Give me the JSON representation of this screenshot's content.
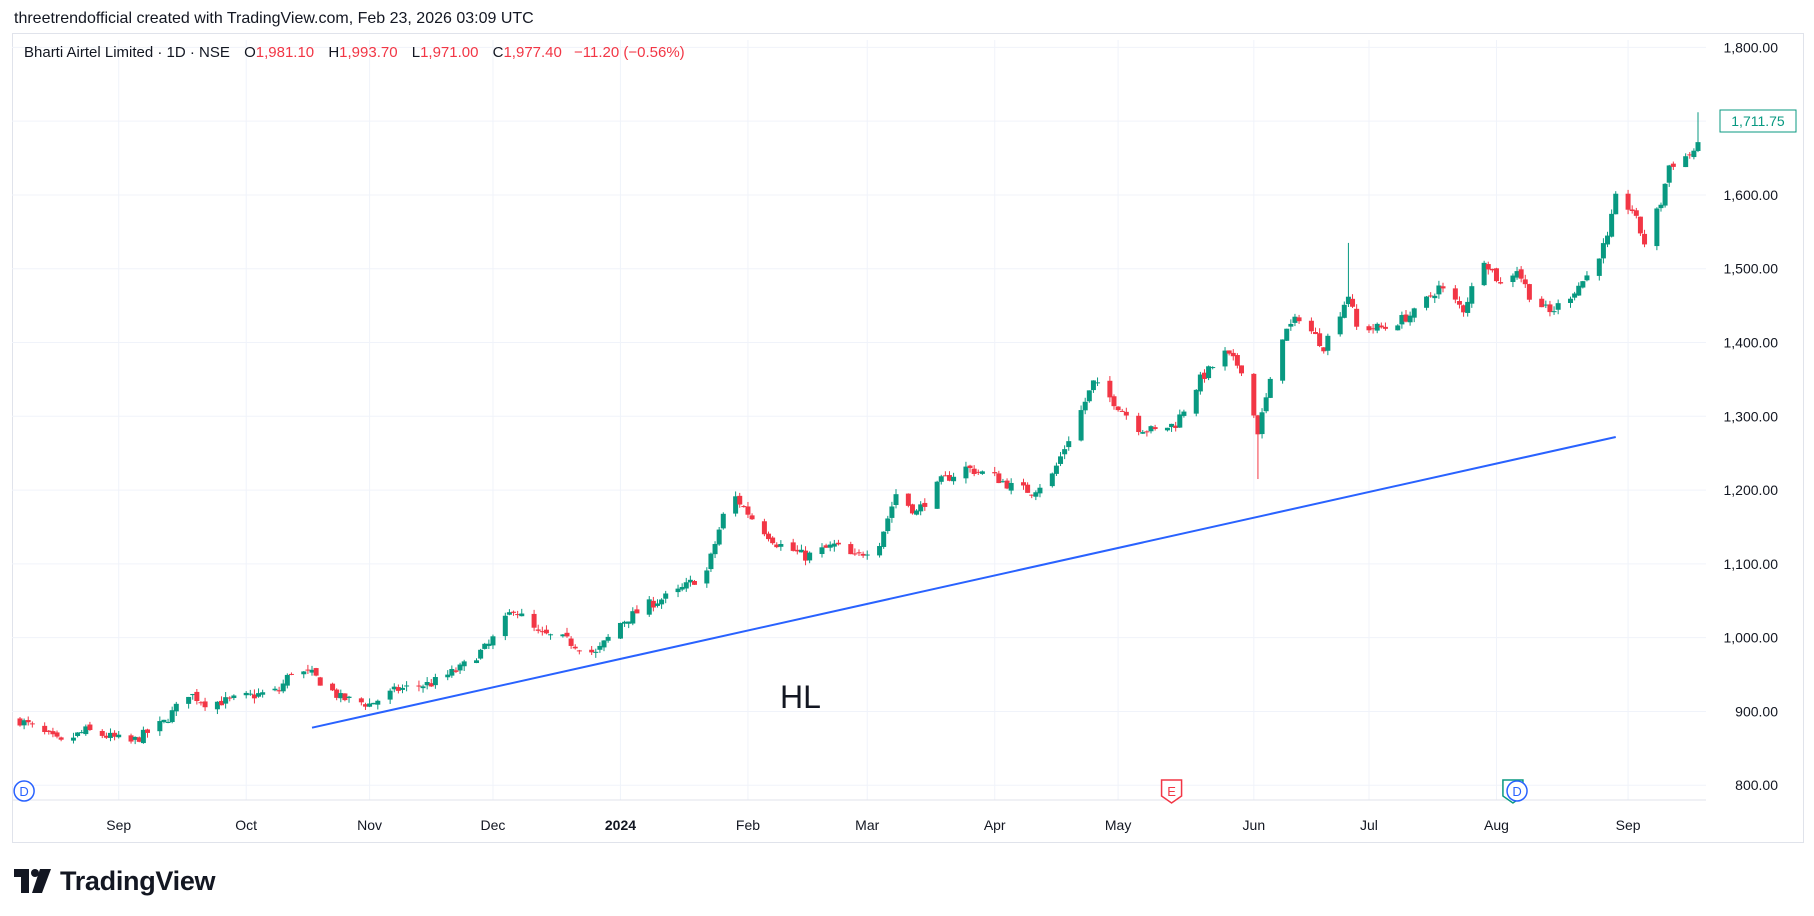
{
  "caption": "threetrendofficial created with TradingView.com, Feb 23, 2026 03:09 UTC",
  "legend": {
    "symbol": "Bharti Airtel Limited · 1D · NSE",
    "o_label": "O",
    "o_value": "1,981.10",
    "h_label": "H",
    "h_value": "1,993.70",
    "l_label": "L",
    "l_value": "1,971.00",
    "c_label": "C",
    "c_value": "1,977.40",
    "change": "−11.20 (−0.56%)"
  },
  "colors": {
    "up": "#089981",
    "down": "#f23645",
    "trendline": "#2962ff",
    "grid": "#f0f3fa",
    "axis_text": "#131722",
    "div_marker": "#2962ff"
  },
  "annotation": {
    "text": "HL"
  },
  "price_label": "1,711.75",
  "markers": [
    {
      "type": "dividend",
      "letter": "D",
      "date": "2023-08-09",
      "color": "#2962ff"
    },
    {
      "type": "earnings",
      "letter": "E",
      "date": "2024-05-14",
      "color": "#f23645"
    },
    {
      "type": "earnings",
      "letter": "E",
      "date": "2024-08-05",
      "color": "#089981"
    },
    {
      "type": "dividend",
      "letter": "D",
      "date": "2024-08-06",
      "color": "#2962ff"
    }
  ],
  "brand": {
    "name": "TradingView"
  },
  "chart_data": {
    "type": "candlestick",
    "title": "Bharti Airtel Limited · 1D · NSE",
    "x_range": [
      "2023-08-08",
      "2024-09-19"
    ],
    "ylim": [
      780,
      1810
    ],
    "y_ticks": [
      {
        "value": 800,
        "label": "800.00"
      },
      {
        "value": 900,
        "label": "900.00"
      },
      {
        "value": 1000,
        "label": "1,000.00"
      },
      {
        "value": 1100,
        "label": "1,100.00"
      },
      {
        "value": 1200,
        "label": "1,200.00"
      },
      {
        "value": 1300,
        "label": "1,300.00"
      },
      {
        "value": 1400,
        "label": "1,400.00"
      },
      {
        "value": 1500,
        "label": "1,500.00"
      },
      {
        "value": 1600,
        "label": "1,600.00"
      },
      {
        "value": 1700,
        "label": "1,700.00"
      },
      {
        "value": 1800,
        "label": "1,800.00"
      }
    ],
    "x_ticks": [
      {
        "date": "2023-09-01",
        "label": "Sep"
      },
      {
        "date": "2023-10-02",
        "label": "Oct"
      },
      {
        "date": "2023-11-01",
        "label": "Nov"
      },
      {
        "date": "2023-12-01",
        "label": "Dec"
      },
      {
        "date": "2024-01-01",
        "label": "2024",
        "bold": true
      },
      {
        "date": "2024-02-01",
        "label": "Feb"
      },
      {
        "date": "2024-03-01",
        "label": "Mar"
      },
      {
        "date": "2024-04-01",
        "label": "Apr"
      },
      {
        "date": "2024-05-01",
        "label": "May"
      },
      {
        "date": "2024-06-03",
        "label": "Jun"
      },
      {
        "date": "2024-07-01",
        "label": "Jul"
      },
      {
        "date": "2024-08-01",
        "label": "Aug"
      },
      {
        "date": "2024-09-02",
        "label": "Sep"
      }
    ],
    "trendline": {
      "x1": "2023-10-18",
      "y1": 878,
      "x2": "2024-08-30",
      "y2": 1272
    },
    "close_path": [
      [
        "2023-08-08",
        888
      ],
      [
        "2023-08-18",
        857
      ],
      [
        "2023-08-24",
        874
      ],
      [
        "2023-09-04",
        858
      ],
      [
        "2023-09-12",
        885
      ],
      [
        "2023-09-18",
        925
      ],
      [
        "2023-09-22",
        912
      ],
      [
        "2023-09-27",
        914
      ],
      [
        "2023-10-04",
        922
      ],
      [
        "2023-10-10",
        928
      ],
      [
        "2023-10-13",
        955
      ],
      [
        "2023-10-18",
        950
      ],
      [
        "2023-10-25",
        918
      ],
      [
        "2023-11-01",
        910
      ],
      [
        "2023-11-08",
        930
      ],
      [
        "2023-11-16",
        938
      ],
      [
        "2023-11-23",
        958
      ],
      [
        "2023-11-30",
        990
      ],
      [
        "2023-12-06",
        1040
      ],
      [
        "2023-12-12",
        1005
      ],
      [
        "2023-12-18",
        998
      ],
      [
        "2023-12-26",
        978
      ],
      [
        "2024-01-01",
        1020
      ],
      [
        "2024-01-08",
        1045
      ],
      [
        "2024-01-15",
        1062
      ],
      [
        "2024-01-22",
        1090
      ],
      [
        "2024-01-26",
        1165
      ],
      [
        "2024-01-29",
        1190
      ],
      [
        "2024-02-02",
        1162
      ],
      [
        "2024-02-08",
        1128
      ],
      [
        "2024-02-15",
        1110
      ],
      [
        "2024-02-22",
        1125
      ],
      [
        "2024-02-27",
        1108
      ],
      [
        "2024-03-04",
        1130
      ],
      [
        "2024-03-08",
        1195
      ],
      [
        "2024-03-13",
        1170
      ],
      [
        "2024-03-19",
        1212
      ],
      [
        "2024-03-25",
        1230
      ],
      [
        "2024-04-01",
        1218
      ],
      [
        "2024-04-05",
        1205
      ],
      [
        "2024-04-10",
        1198
      ],
      [
        "2024-04-15",
        1220
      ],
      [
        "2024-04-19",
        1270
      ],
      [
        "2024-04-25",
        1345
      ],
      [
        "2024-04-30",
        1320
      ],
      [
        "2024-05-06",
        1285
      ],
      [
        "2024-05-10",
        1280
      ],
      [
        "2024-05-15",
        1290
      ],
      [
        "2024-05-21",
        1350
      ],
      [
        "2024-05-27",
        1385
      ],
      [
        "2024-05-31",
        1365
      ],
      [
        "2024-06-04",
        1280
      ],
      [
        "2024-06-10",
        1410
      ],
      [
        "2024-06-14",
        1435
      ],
      [
        "2024-06-20",
        1395
      ],
      [
        "2024-06-26",
        1465
      ],
      [
        "2024-06-28",
        1420
      ],
      [
        "2024-07-05",
        1420
      ],
      [
        "2024-07-12",
        1440
      ],
      [
        "2024-07-18",
        1475
      ],
      [
        "2024-07-24",
        1445
      ],
      [
        "2024-07-29",
        1515
      ],
      [
        "2024-08-02",
        1478
      ],
      [
        "2024-08-06",
        1500
      ],
      [
        "2024-08-09",
        1465
      ],
      [
        "2024-08-14",
        1440
      ],
      [
        "2024-08-19",
        1465
      ],
      [
        "2024-08-23",
        1490
      ],
      [
        "2024-08-28",
        1540
      ],
      [
        "2024-08-30",
        1595
      ],
      [
        "2024-09-03",
        1580
      ],
      [
        "2024-09-06",
        1535
      ],
      [
        "2024-09-10",
        1590
      ],
      [
        "2024-09-12",
        1640
      ],
      [
        "2024-09-17",
        1655
      ],
      [
        "2024-09-19",
        1665
      ]
    ],
    "spikes": [
      {
        "date": "2024-06-04",
        "low": 1215
      },
      {
        "date": "2024-06-26",
        "high": 1535
      },
      {
        "date": "2024-09-19",
        "high": 1712
      }
    ]
  }
}
